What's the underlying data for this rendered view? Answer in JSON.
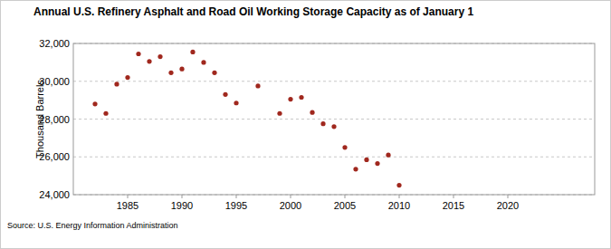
{
  "chart_data": {
    "type": "scatter",
    "title": "Annual U.S. Refinery Asphalt and Road Oil Working Storage Capacity as of January 1",
    "y_label": "Thousand Barrels",
    "source": "Source: U.S. Energy Information Administration",
    "x": [
      1982,
      1983,
      1984,
      1985,
      1986,
      1987,
      1988,
      1989,
      1990,
      1991,
      1992,
      1993,
      1994,
      1995,
      1997,
      1999,
      2000,
      2001,
      2002,
      2003,
      2004,
      2005,
      2006,
      2007,
      2008,
      2009,
      2010
    ],
    "values": [
      28800,
      28300,
      29850,
      30200,
      31450,
      31050,
      31300,
      30450,
      30650,
      31550,
      31000,
      30450,
      29300,
      28850,
      29750,
      28300,
      29050,
      29150,
      28350,
      27750,
      27600,
      26500,
      25350,
      25850,
      25650,
      26100,
      24500
    ],
    "color": "#a0281e",
    "marker": "circle",
    "xlim": [
      1980,
      2028
    ],
    "xticks": [
      1985,
      1990,
      1995,
      2000,
      2005,
      2010,
      2015,
      2020
    ],
    "ylim": [
      24000,
      32000
    ],
    "yticks": [
      {
        "value": 24000,
        "label": "24,000"
      },
      {
        "value": 26000,
        "label": "26,000"
      },
      {
        "value": 28000,
        "label": "28,000"
      },
      {
        "value": 30000,
        "label": "30,000"
      },
      {
        "value": 32000,
        "label": "32,000"
      }
    ],
    "grid": true
  }
}
